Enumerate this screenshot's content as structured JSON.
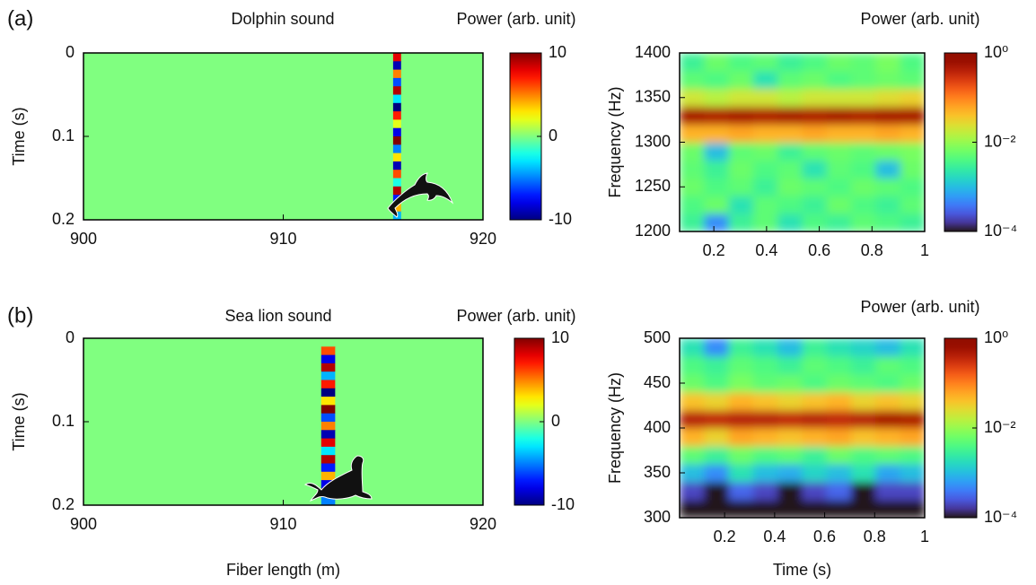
{
  "chart_data": [
    {
      "type": "heatmap",
      "panel_label": "(a)",
      "title": "Dolphin sound",
      "ylabel": "Time (s)",
      "xlim": [
        900,
        920
      ],
      "xticks": [
        900,
        910,
        920
      ],
      "ylim": [
        0,
        0.2
      ],
      "yticks": [
        0,
        0.1,
        0.2
      ],
      "y_reversed": true,
      "xbins": [
        900,
        915.5,
        915.9,
        920
      ],
      "ybins": [
        0,
        0.01,
        0.02,
        0.03,
        0.04,
        0.05,
        0.06,
        0.07,
        0.08,
        0.09,
        0.1,
        0.11,
        0.12,
        0.13,
        0.14,
        0.15,
        0.16,
        0.17,
        0.18,
        0.19,
        0.2
      ],
      "values": [
        [
          0,
          8,
          0
        ],
        [
          0,
          -9,
          0
        ],
        [
          0,
          5,
          0
        ],
        [
          0,
          -6,
          0
        ],
        [
          0,
          9,
          0
        ],
        [
          0,
          -3,
          0
        ],
        [
          0,
          -10,
          0
        ],
        [
          0,
          7,
          0
        ],
        [
          0,
          2,
          0
        ],
        [
          0,
          -8,
          0
        ],
        [
          0,
          10,
          0
        ],
        [
          0,
          -5,
          0
        ],
        [
          0,
          3,
          0
        ],
        [
          0,
          -9,
          0
        ],
        [
          0,
          6,
          0
        ],
        [
          0,
          -2,
          0
        ],
        [
          0,
          9,
          0
        ],
        [
          0,
          -7,
          0
        ],
        [
          0,
          4,
          0
        ],
        [
          0,
          -4,
          0
        ]
      ],
      "colorbar": {
        "label": "Power (arb. unit)",
        "lim": [
          -10,
          10
        ],
        "ticks": [
          -10,
          0,
          10
        ],
        "colormap": "jet",
        "log": false
      }
    },
    {
      "type": "heatmap",
      "ylabel": "Frequency (Hz)",
      "xlim": [
        0.07,
        1
      ],
      "xticks": [
        0.2,
        0.4,
        0.6,
        0.8,
        1
      ],
      "ylim": [
        1200,
        1400
      ],
      "yticks": [
        1200,
        1250,
        1300,
        1350,
        1400
      ],
      "y_reversed": false,
      "xbins": [
        0.07,
        0.163,
        0.256,
        0.349,
        0.442,
        0.535,
        0.628,
        0.721,
        0.814,
        0.907,
        1
      ],
      "ybins": [
        1200,
        1220,
        1240,
        1260,
        1280,
        1300,
        1320,
        1340,
        1360,
        1380,
        1400
      ],
      "values": [
        [
          0.003,
          0.0005,
          0.003,
          0.005,
          0.002,
          0.004,
          0.003,
          0.005,
          0.004,
          0.003
        ],
        [
          0.004,
          0.006,
          0.002,
          0.005,
          0.004,
          0.003,
          0.006,
          0.004,
          0.003,
          0.005
        ],
        [
          0.006,
          0.004,
          0.005,
          0.003,
          0.006,
          0.005,
          0.004,
          0.006,
          0.005,
          0.004
        ],
        [
          0.005,
          0.003,
          0.006,
          0.004,
          0.005,
          0.002,
          0.005,
          0.004,
          0.001,
          0.006
        ],
        [
          0.006,
          0.001,
          0.005,
          0.006,
          0.003,
          0.005,
          0.006,
          0.005,
          0.006,
          0.007
        ],
        [
          0.05,
          0.05,
          0.06,
          0.05,
          0.05,
          0.06,
          0.05,
          0.05,
          0.06,
          0.05
        ],
        [
          0.5,
          0.45,
          0.5,
          0.45,
          0.5,
          0.45,
          0.5,
          0.45,
          0.5,
          0.5
        ],
        [
          0.02,
          0.015,
          0.02,
          0.02,
          0.015,
          0.02,
          0.02,
          0.02,
          0.025,
          0.03
        ],
        [
          0.005,
          0.004,
          0.006,
          0.002,
          0.005,
          0.006,
          0.004,
          0.005,
          0.006,
          0.005
        ],
        [
          0.003,
          0.006,
          0.004,
          0.005,
          0.003,
          0.004,
          0.006,
          0.005,
          0.007,
          0.004
        ]
      ],
      "colorbar": {
        "label": "Power (arb. unit)",
        "lim": [
          0.0001,
          1
        ],
        "ticks": [
          {
            "value": 0.0001,
            "label": "10⁻⁴"
          },
          {
            "value": 0.01,
            "label": "10⁻²"
          },
          {
            "value": 1,
            "label": "10⁰"
          }
        ],
        "colormap": "turbo",
        "log": true
      }
    },
    {
      "type": "heatmap",
      "panel_label": "(b)",
      "title": "Sea lion sound",
      "ylabel": "Time (s)",
      "xlabel": "Fiber length (m)",
      "xlim": [
        900,
        920
      ],
      "xticks": [
        900,
        910,
        920
      ],
      "ylim": [
        0,
        0.2
      ],
      "yticks": [
        0,
        0.1,
        0.2
      ],
      "y_reversed": true,
      "xbins": [
        900,
        911.9,
        912.6,
        920
      ],
      "ybins": [
        0,
        0.01,
        0.02,
        0.03,
        0.04,
        0.05,
        0.06,
        0.07,
        0.08,
        0.09,
        0.1,
        0.11,
        0.12,
        0.13,
        0.14,
        0.15,
        0.16,
        0.17,
        0.18,
        0.19,
        0.2
      ],
      "values": [
        [
          0,
          0,
          0
        ],
        [
          0,
          6,
          0
        ],
        [
          0,
          -8,
          0
        ],
        [
          0,
          9,
          0
        ],
        [
          0,
          -4,
          0
        ],
        [
          0,
          7,
          0
        ],
        [
          0,
          -10,
          0
        ],
        [
          0,
          3,
          0
        ],
        [
          0,
          10,
          0
        ],
        [
          0,
          -6,
          0
        ],
        [
          0,
          5,
          0
        ],
        [
          0,
          -9,
          0
        ],
        [
          0,
          8,
          0
        ],
        [
          0,
          -3,
          0
        ],
        [
          0,
          9,
          0
        ],
        [
          0,
          -7,
          0
        ],
        [
          0,
          4,
          0
        ],
        [
          0,
          -8,
          0
        ],
        [
          0,
          6,
          0
        ],
        [
          0,
          -5,
          0
        ]
      ],
      "colorbar": {
        "label": "Power (arb. unit)",
        "lim": [
          -10,
          10
        ],
        "ticks": [
          -10,
          0,
          10
        ],
        "colormap": "jet",
        "log": false
      }
    },
    {
      "type": "heatmap",
      "ylabel": "Frequency (Hz)",
      "xlabel": "Time (s)",
      "xlim": [
        0.02,
        1
      ],
      "xticks": [
        0.2,
        0.4,
        0.6,
        0.8,
        1
      ],
      "ylim": [
        300,
        500
      ],
      "yticks": [
        300,
        350,
        400,
        450,
        500
      ],
      "y_reversed": false,
      "xbins": [
        0.02,
        0.118,
        0.216,
        0.314,
        0.412,
        0.51,
        0.608,
        0.706,
        0.804,
        0.902,
        1
      ],
      "ybins": [
        300,
        320,
        340,
        360,
        380,
        400,
        420,
        440,
        460,
        480,
        500
      ],
      "values": [
        [
          0.0001,
          0.0001,
          0.0001,
          0.0001,
          0.0001,
          0.0001,
          0.0001,
          0.0001,
          0.0001,
          0.0001
        ],
        [
          0.0002,
          0.0001,
          0.0003,
          0.0002,
          0.0001,
          0.0002,
          0.0003,
          0.0001,
          0.0002,
          0.0002
        ],
        [
          0.001,
          0.0005,
          0.002,
          0.001,
          0.0008,
          0.0015,
          0.001,
          0.002,
          0.0007,
          0.001
        ],
        [
          0.005,
          0.003,
          0.006,
          0.004,
          0.005,
          0.003,
          0.006,
          0.004,
          0.005,
          0.004
        ],
        [
          0.05,
          0.03,
          0.06,
          0.05,
          0.04,
          0.05,
          0.06,
          0.04,
          0.05,
          0.06
        ],
        [
          0.4,
          0.35,
          0.4,
          0.4,
          0.35,
          0.4,
          0.35,
          0.4,
          0.5,
          0.45
        ],
        [
          0.04,
          0.03,
          0.05,
          0.04,
          0.03,
          0.04,
          0.05,
          0.03,
          0.04,
          0.03
        ],
        [
          0.006,
          0.004,
          0.007,
          0.005,
          0.006,
          0.004,
          0.006,
          0.005,
          0.004,
          0.006
        ],
        [
          0.004,
          0.003,
          0.005,
          0.004,
          0.003,
          0.005,
          0.004,
          0.003,
          0.005,
          0.004
        ],
        [
          0.002,
          0.0005,
          0.003,
          0.002,
          0.001,
          0.003,
          0.002,
          0.0015,
          0.001,
          0.002
        ]
      ],
      "colorbar": {
        "label": "Power (arb. unit)",
        "lim": [
          0.0001,
          1
        ],
        "ticks": [
          {
            "value": 0.0001,
            "label": "10⁻⁴"
          },
          {
            "value": 0.01,
            "label": "10⁻²"
          },
          {
            "value": 1,
            "label": "10⁰"
          }
        ],
        "colormap": "turbo",
        "log": true
      }
    }
  ]
}
